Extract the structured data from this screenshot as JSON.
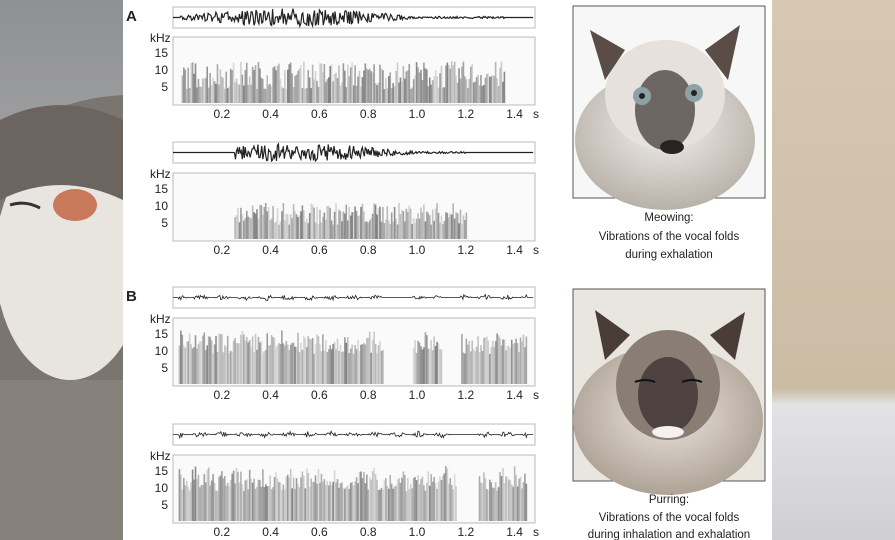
{
  "panels": [
    {
      "label": "A",
      "plots": [
        {
          "y_unit": "kHz",
          "yticks": [
            "15",
            "10",
            "5"
          ],
          "xticks": [
            "0.2",
            "0.4",
            "0.6",
            "0.8",
            "1.0",
            "1.2",
            "1.4"
          ],
          "x_unit": "s"
        },
        {
          "y_unit": "kHz",
          "yticks": [
            "15",
            "10",
            "5"
          ],
          "xticks": [
            "0.2",
            "0.4",
            "0.6",
            "0.8",
            "1.0",
            "1.2",
            "1.4"
          ],
          "x_unit": "s"
        }
      ]
    },
    {
      "label": "B",
      "plots": [
        {
          "y_unit": "kHz",
          "yticks": [
            "15",
            "10",
            "5"
          ],
          "xticks": [
            "0.2",
            "0.4",
            "0.6",
            "0.8",
            "1.0",
            "1.2",
            "1.4"
          ],
          "x_unit": "s"
        },
        {
          "y_unit": "kHz",
          "yticks": [
            "15",
            "10",
            "5"
          ],
          "xticks": [
            "0.2",
            "0.4",
            "0.6",
            "0.8",
            "1.0",
            "1.2",
            "1.4"
          ],
          "x_unit": "s"
        }
      ]
    }
  ],
  "photos": [
    {
      "caption": [
        "Meowing:",
        "Vibrations of the vocal folds",
        "during exhalation"
      ]
    },
    {
      "caption": [
        "Purring:",
        "Vibrations of the vocal folds",
        "during inhalation and exhalation"
      ]
    }
  ]
}
